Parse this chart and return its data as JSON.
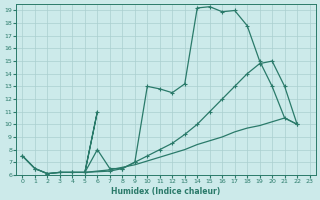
{
  "background_color": "#cceaea",
  "grid_color": "#aacfcf",
  "line_color": "#2a7a6a",
  "xlabel": "Humidex (Indice chaleur)",
  "xlim": [
    -0.5,
    23.5
  ],
  "ylim": [
    6,
    19.5
  ],
  "yticks": [
    6,
    7,
    8,
    9,
    10,
    11,
    12,
    13,
    14,
    15,
    16,
    17,
    18,
    19
  ],
  "xticks": [
    0,
    1,
    2,
    3,
    4,
    5,
    6,
    7,
    8,
    9,
    10,
    11,
    12,
    13,
    14,
    15,
    16,
    17,
    18,
    19,
    20,
    21,
    22,
    23
  ],
  "line_straight_x": [
    0,
    1,
    2,
    3,
    4,
    5,
    6,
    7,
    8,
    9,
    10,
    11,
    12,
    13,
    14,
    15,
    16,
    17,
    18,
    19,
    20,
    21,
    22
  ],
  "line_straight_y": [
    7.5,
    6.5,
    6.1,
    6.2,
    6.2,
    6.2,
    6.3,
    6.4,
    6.6,
    6.8,
    7.1,
    7.4,
    7.7,
    8.0,
    8.4,
    8.7,
    9.0,
    9.4,
    9.7,
    9.9,
    10.2,
    10.5,
    10.0
  ],
  "line_mid_x": [
    0,
    1,
    2,
    3,
    4,
    5,
    6,
    5,
    7,
    8,
    9,
    10,
    11,
    12,
    13,
    14,
    15,
    16,
    17,
    18,
    19,
    20,
    21,
    22
  ],
  "line_mid_y": [
    7.5,
    6.5,
    6.1,
    6.2,
    6.2,
    6.2,
    11.0,
    6.2,
    6.3,
    6.5,
    7.0,
    7.5,
    8.0,
    8.5,
    9.2,
    10.0,
    11.0,
    12.0,
    13.0,
    14.0,
    14.8,
    15.0,
    13.0,
    10.0
  ],
  "line_top_x": [
    0,
    1,
    2,
    3,
    4,
    5,
    6,
    7,
    8,
    9,
    10,
    11,
    12,
    13,
    14,
    15,
    16,
    17,
    18,
    19,
    20,
    21,
    22
  ],
  "line_top_y": [
    7.5,
    6.5,
    6.1,
    6.2,
    6.2,
    6.2,
    8.0,
    6.5,
    6.5,
    7.0,
    13.0,
    12.8,
    12.5,
    13.2,
    19.2,
    19.3,
    18.9,
    19.0,
    17.8,
    15.0,
    13.0,
    10.5,
    10.0
  ]
}
